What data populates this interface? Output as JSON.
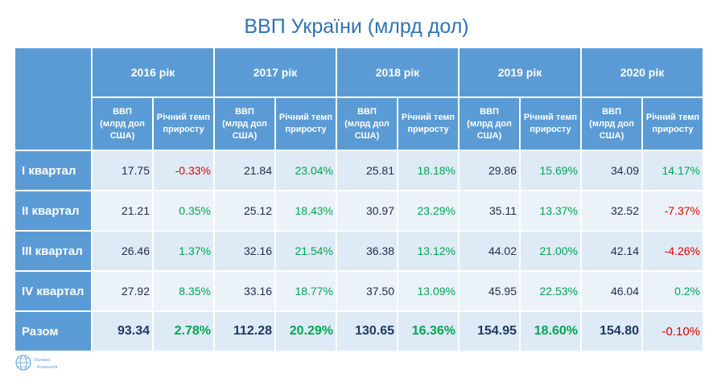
{
  "title": "ВВП України (млрд дол",
  "title_suffix": ")",
  "years": [
    "2016 рік",
    "2017 рік",
    "2018 рік",
    "2019 рік",
    "2020 рік"
  ],
  "sub_headers": {
    "gdp_line1": "ВВП",
    "gdp_line2": "(млрд дол",
    "gdp_line3": "США)",
    "growth_line1": "Річний темп",
    "growth_line2": "приросту"
  },
  "rows": [
    {
      "label": "І квартал",
      "cells": [
        {
          "gdp": "17.75",
          "growth": "-0.33%",
          "sign": "neg"
        },
        {
          "gdp": "21.84",
          "growth": "23.04%",
          "sign": "pos"
        },
        {
          "gdp": "25.81",
          "growth": "18.18%",
          "sign": "pos"
        },
        {
          "gdp": "29.86",
          "growth": "15.69%",
          "sign": "pos"
        },
        {
          "gdp": "34.09",
          "growth": "14.17%",
          "sign": "pos"
        }
      ]
    },
    {
      "label": "ІІ квартал",
      "cells": [
        {
          "gdp": "21.21",
          "growth": "0.35%",
          "sign": "pos"
        },
        {
          "gdp": "25.12",
          "growth": "18.43%",
          "sign": "pos"
        },
        {
          "gdp": "30.97",
          "growth": "23.29%",
          "sign": "pos"
        },
        {
          "gdp": "35.11",
          "growth": "13.37%",
          "sign": "pos"
        },
        {
          "gdp": "32.52",
          "growth": "-7.37%",
          "sign": "neg"
        }
      ]
    },
    {
      "label": "ІІІ квартал",
      "cells": [
        {
          "gdp": "26.46",
          "growth": "1.37%",
          "sign": "pos"
        },
        {
          "gdp": "32.16",
          "growth": "21.54%",
          "sign": "pos"
        },
        {
          "gdp": "36.38",
          "growth": "13.12%",
          "sign": "pos"
        },
        {
          "gdp": "44.02",
          "growth": "21.00%",
          "sign": "pos"
        },
        {
          "gdp": "42.14",
          "growth": "-4.26%",
          "sign": "neg"
        }
      ]
    },
    {
      "label": "IV квартал",
      "cells": [
        {
          "gdp": "27.92",
          "growth": "8.35%",
          "sign": "pos"
        },
        {
          "gdp": "33.16",
          "growth": "18.77%",
          "sign": "pos"
        },
        {
          "gdp": "37.50",
          "growth": "13.09%",
          "sign": "pos"
        },
        {
          "gdp": "45.95",
          "growth": "22.53%",
          "sign": "pos"
        },
        {
          "gdp": "46.04",
          "growth": "0.2%",
          "sign": "pos"
        }
      ]
    }
  ],
  "total": {
    "label": "Разом",
    "cells": [
      {
        "gdp": "93.34",
        "growth": "2.78%",
        "sign": "pos"
      },
      {
        "gdp": "112.28",
        "growth": "20.29%",
        "sign": "pos"
      },
      {
        "gdp": "130.65",
        "growth": "16.36%",
        "sign": "pos"
      },
      {
        "gdp": "154.95",
        "growth": "18.60%",
        "sign": "pos"
      },
      {
        "gdp": "154.80",
        "growth": "-0.10%",
        "sign": "neg"
      }
    ]
  },
  "colors": {
    "header_bg": "#5B9BD5",
    "row_a_bg": "#DEEAF6",
    "row_b_bg": "#EBF2F9",
    "title": "#2E74B5",
    "negative": "#E00000",
    "positive": "#00A651"
  },
  "logo": {
    "icon": "globe-logo-icon",
    "line1": "Головна",
    "line2": "Компаніїя"
  }
}
